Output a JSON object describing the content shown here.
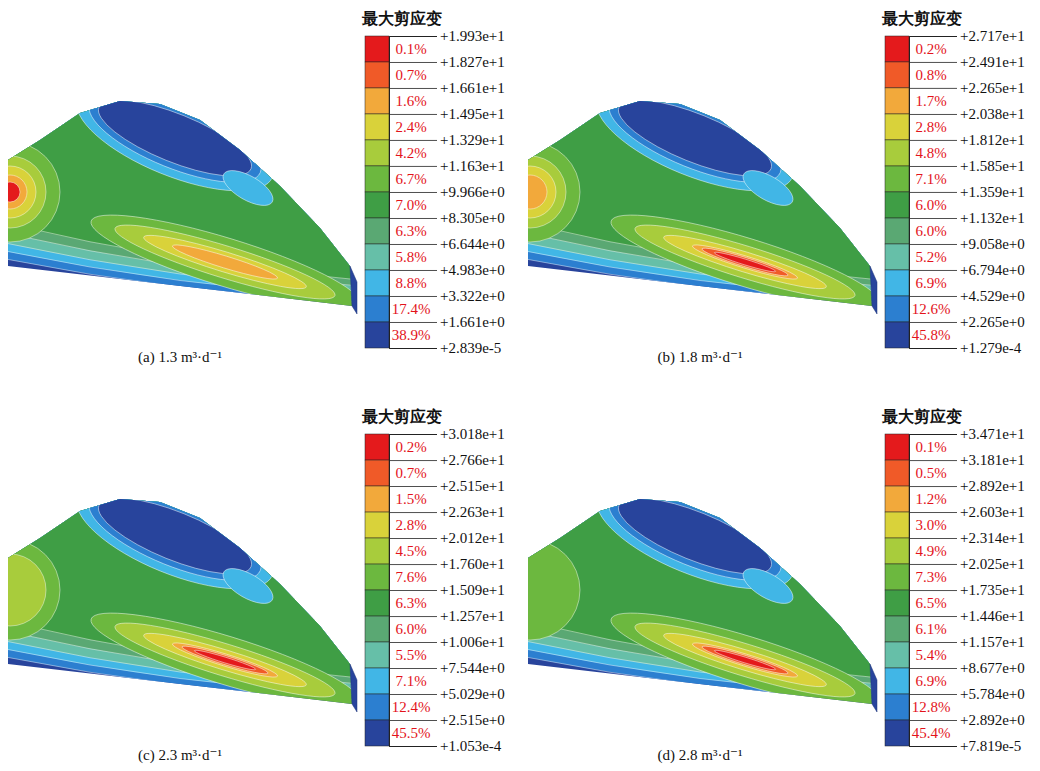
{
  "chart_data": [
    {
      "type": "contour",
      "title": "最大剪应变",
      "caption": "(a) 1.3 m³·d⁻¹",
      "colorbar": {
        "range": [
          2.839e-05,
          19.93
        ],
        "ticks": [
          {
            "value": 19.93,
            "label": "+1.993e+1"
          },
          {
            "value": 18.27,
            "label": "+1.827e+1"
          },
          {
            "value": 16.61,
            "label": "+1.661e+1"
          },
          {
            "value": 14.95,
            "label": "+1.495e+1"
          },
          {
            "value": 13.29,
            "label": "+1.329e+1"
          },
          {
            "value": 11.63,
            "label": "+1.163e+1"
          },
          {
            "value": 9.966,
            "label": "+9.966e+0"
          },
          {
            "value": 8.305,
            "label": "+8.305e+0"
          },
          {
            "value": 6.644,
            "label": "+6.644e+0"
          },
          {
            "value": 4.983,
            "label": "+4.983e+0"
          },
          {
            "value": 3.322,
            "label": "+3.322e+0"
          },
          {
            "value": 1.661,
            "label": "+1.661e+0"
          },
          {
            "value": 2.839e-05,
            "label": "+2.839e-5"
          }
        ],
        "values": [
          0.1,
          0.7,
          1.6,
          2.4,
          4.2,
          6.7,
          7.0,
          6.3,
          5.8,
          8.8,
          17.4,
          38.9
        ],
        "value_labels": [
          "0.1%",
          "0.7%",
          "1.6%",
          "2.4%",
          "4.2%",
          "6.7%",
          "7.0%",
          "6.3%",
          "5.8%",
          "8.8%",
          "17.4%",
          "38.9%"
        ],
        "colors": [
          "#e41a1c",
          "#f05a28",
          "#f2a93b",
          "#d9d23a",
          "#a8cc3c",
          "#6cb83f",
          "#3f9e45",
          "#5aa873",
          "#66bfa8",
          "#41b6e6",
          "#2c7fd0",
          "#28449c"
        ]
      }
    },
    {
      "type": "contour",
      "title": "最大剪应变",
      "caption": "(b) 1.8 m³·d⁻¹",
      "colorbar": {
        "range": [
          0.0001279,
          27.17
        ],
        "ticks": [
          {
            "value": 27.17,
            "label": "+2.717e+1"
          },
          {
            "value": 24.91,
            "label": "+2.491e+1"
          },
          {
            "value": 22.65,
            "label": "+2.265e+1"
          },
          {
            "value": 20.38,
            "label": "+2.038e+1"
          },
          {
            "value": 18.12,
            "label": "+1.812e+1"
          },
          {
            "value": 15.85,
            "label": "+1.585e+1"
          },
          {
            "value": 13.59,
            "label": "+1.359e+1"
          },
          {
            "value": 11.32,
            "label": "+1.132e+1"
          },
          {
            "value": 9.058,
            "label": "+9.058e+0"
          },
          {
            "value": 6.794,
            "label": "+6.794e+0"
          },
          {
            "value": 4.529,
            "label": "+4.529e+0"
          },
          {
            "value": 2.265,
            "label": "+2.265e+0"
          },
          {
            "value": 0.0001279,
            "label": "+1.279e-4"
          }
        ],
        "values": [
          0.2,
          0.8,
          1.7,
          2.8,
          4.8,
          7.1,
          6.0,
          6.0,
          5.2,
          6.9,
          12.6,
          45.8
        ],
        "value_labels": [
          "0.2%",
          "0.8%",
          "1.7%",
          "2.8%",
          "4.8%",
          "7.1%",
          "6.0%",
          "6.0%",
          "5.2%",
          "6.9%",
          "12.6%",
          "45.8%"
        ],
        "colors": [
          "#e41a1c",
          "#f05a28",
          "#f2a93b",
          "#d9d23a",
          "#a8cc3c",
          "#6cb83f",
          "#3f9e45",
          "#5aa873",
          "#66bfa8",
          "#41b6e6",
          "#2c7fd0",
          "#28449c"
        ]
      }
    },
    {
      "type": "contour",
      "title": "最大剪应变",
      "caption": "(c) 2.3 m³·d⁻¹",
      "colorbar": {
        "range": [
          0.0001053,
          30.18
        ],
        "ticks": [
          {
            "value": 30.18,
            "label": "+3.018e+1"
          },
          {
            "value": 27.66,
            "label": "+2.766e+1"
          },
          {
            "value": 25.15,
            "label": "+2.515e+1"
          },
          {
            "value": 22.63,
            "label": "+2.263e+1"
          },
          {
            "value": 20.12,
            "label": "+2.012e+1"
          },
          {
            "value": 17.6,
            "label": "+1.760e+1"
          },
          {
            "value": 15.09,
            "label": "+1.509e+1"
          },
          {
            "value": 12.57,
            "label": "+1.257e+1"
          },
          {
            "value": 10.06,
            "label": "+1.006e+1"
          },
          {
            "value": 7.544,
            "label": "+7.544e+0"
          },
          {
            "value": 5.029,
            "label": "+5.029e+0"
          },
          {
            "value": 2.515,
            "label": "+2.515e+0"
          },
          {
            "value": 0.0001053,
            "label": "+1.053e-4"
          }
        ],
        "values": [
          0.2,
          0.7,
          1.5,
          2.8,
          4.5,
          7.6,
          6.3,
          6.0,
          5.5,
          7.1,
          12.4,
          45.5
        ],
        "value_labels": [
          "0.2%",
          "0.7%",
          "1.5%",
          "2.8%",
          "4.5%",
          "7.6%",
          "6.3%",
          "6.0%",
          "5.5%",
          "7.1%",
          "12.4%",
          "45.5%"
        ],
        "colors": [
          "#e41a1c",
          "#f05a28",
          "#f2a93b",
          "#d9d23a",
          "#a8cc3c",
          "#6cb83f",
          "#3f9e45",
          "#5aa873",
          "#66bfa8",
          "#41b6e6",
          "#2c7fd0",
          "#28449c"
        ]
      }
    },
    {
      "type": "contour",
      "title": "最大剪应变",
      "caption": "(d) 2.8 m³·d⁻¹",
      "colorbar": {
        "range": [
          7.819e-05,
          34.71
        ],
        "ticks": [
          {
            "value": 34.71,
            "label": "+3.471e+1"
          },
          {
            "value": 31.81,
            "label": "+3.181e+1"
          },
          {
            "value": 28.92,
            "label": "+2.892e+1"
          },
          {
            "value": 26.03,
            "label": "+2.603e+1"
          },
          {
            "value": 23.14,
            "label": "+2.314e+1"
          },
          {
            "value": 20.25,
            "label": "+2.025e+1"
          },
          {
            "value": 17.35,
            "label": "+1.735e+1"
          },
          {
            "value": 14.46,
            "label": "+1.446e+1"
          },
          {
            "value": 11.57,
            "label": "+1.157e+1"
          },
          {
            "value": 8.677,
            "label": "+8.677e+0"
          },
          {
            "value": 5.784,
            "label": "+5.784e+0"
          },
          {
            "value": 2.892,
            "label": "+2.892e+0"
          },
          {
            "value": 7.819e-05,
            "label": "+7.819e-5"
          }
        ],
        "values": [
          0.1,
          0.5,
          1.2,
          3.0,
          4.9,
          7.3,
          6.5,
          6.1,
          5.4,
          6.9,
          12.8,
          45.4
        ],
        "value_labels": [
          "0.1%",
          "0.5%",
          "1.2%",
          "3.0%",
          "4.9%",
          "7.3%",
          "6.5%",
          "6.1%",
          "5.4%",
          "6.9%",
          "12.8%",
          "45.4%"
        ],
        "colors": [
          "#e41a1c",
          "#f05a28",
          "#f2a93b",
          "#d9d23a",
          "#a8cc3c",
          "#6cb83f",
          "#3f9e45",
          "#5aa873",
          "#66bfa8",
          "#41b6e6",
          "#2c7fd0",
          "#28449c"
        ]
      }
    }
  ]
}
